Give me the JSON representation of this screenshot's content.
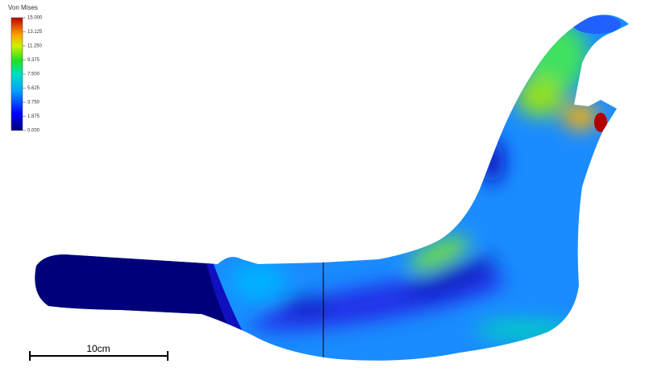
{
  "legend": {
    "title": "Von Mises",
    "ticks": [
      "15.000",
      "13.125",
      "11.250",
      "9.375",
      "7.500",
      "5.625",
      "3.750",
      "1.875",
      "0.000"
    ]
  },
  "scale_bar": {
    "label": "10cm"
  }
}
